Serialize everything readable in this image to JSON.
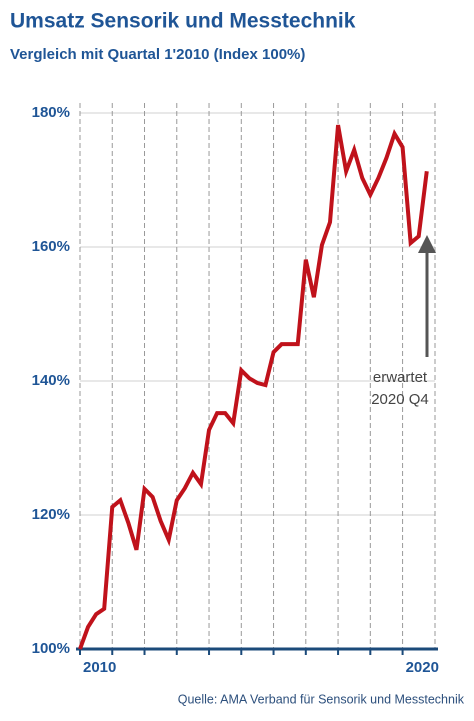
{
  "chart_data": {
    "type": "line",
    "title": "Umsatz Sensorik und Messtechnik",
    "subtitle": "Vergleich mit Quartal 1'2010 (Index 100%)",
    "x": [
      2010,
      2010.25,
      2010.5,
      2010.75,
      2011,
      2011.25,
      2011.5,
      2011.75,
      2012,
      2012.25,
      2012.5,
      2012.75,
      2013,
      2013.25,
      2013.5,
      2013.75,
      2014,
      2014.25,
      2014.5,
      2014.75,
      2015,
      2015.25,
      2015.5,
      2015.75,
      2016,
      2016.25,
      2016.5,
      2016.75,
      2017,
      2017.25,
      2017.5,
      2017.75,
      2018,
      2018.25,
      2018.5,
      2018.75,
      2019,
      2019.25,
      2019.5,
      2019.75,
      2020,
      2020.25,
      2020.5,
      2020.75
    ],
    "series": [
      {
        "color": "#c0121b",
        "values": [
          100,
          103.3,
          105.2,
          106,
          121.2,
          122.2,
          118.8,
          114.8,
          123.9,
          122.7,
          119.1,
          116.3,
          122.2,
          124,
          126.3,
          124.6,
          132.7,
          135.2,
          135.2,
          133.7,
          141.6,
          140.4,
          139.7,
          139.4,
          144.3,
          145.5,
          145.5,
          145.5,
          158.1,
          152.5,
          160.3,
          163.7,
          178.2,
          171.3,
          174.5,
          170.3,
          167.8,
          170.3,
          173.3,
          176.9,
          174.9,
          160.6,
          161.6,
          171.3
        ]
      }
    ],
    "xlim": [
      2010,
      2020.85
    ],
    "xticks": [
      {
        "value": 2010,
        "label": "2010"
      },
      {
        "value": 2011,
        "label": null
      },
      {
        "value": 2012,
        "label": null
      },
      {
        "value": 2013,
        "label": null
      },
      {
        "value": 2014,
        "label": null
      },
      {
        "value": 2015,
        "label": null
      },
      {
        "value": 2016,
        "label": null
      },
      {
        "value": 2017,
        "label": null
      },
      {
        "value": 2018,
        "label": null
      },
      {
        "value": 2019,
        "label": null
      },
      {
        "value": 2020,
        "label": "2020"
      }
    ],
    "ylim": [
      100,
      180
    ],
    "yticks": [
      {
        "value": 100,
        "label": "100%"
      },
      {
        "value": 120,
        "label": "120%"
      },
      {
        "value": 140,
        "label": "140%"
      },
      {
        "value": 160,
        "label": "160%"
      },
      {
        "value": 180,
        "label": "180%"
      }
    ],
    "grid": true,
    "annotation": [
      "erwartet",
      "2020 Q4"
    ],
    "source": "Quelle: AMA Verband für Sensorik und Messtechnik"
  }
}
